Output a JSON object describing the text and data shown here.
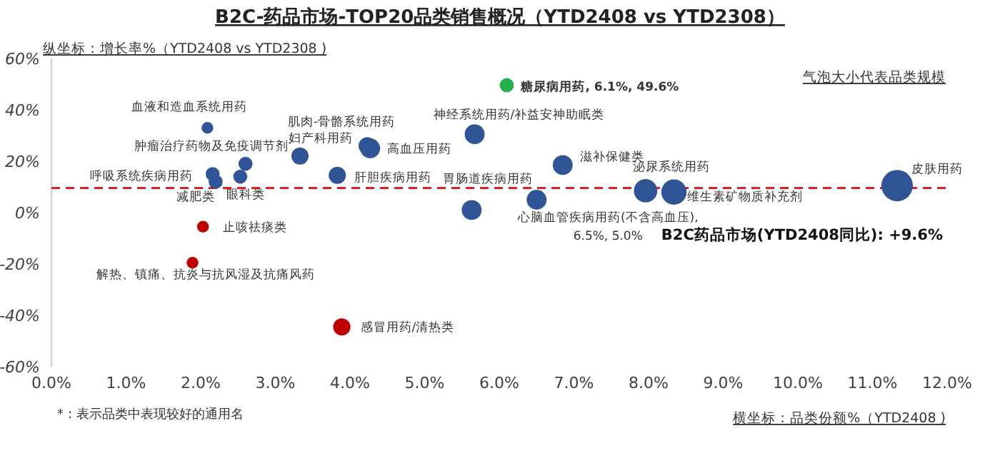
{
  "chart_data": {
    "type": "bubble",
    "title": "B2C-药品市场-TOP20品类销售概况（YTD2408 vs YTD2308）",
    "xlabel": "横坐标：品类份额%（YTD2408 )",
    "ylabel": "纵坐标：增长率%（YTD2408 vs YTD2308 )",
    "x": [
      6.1,
      2.09,
      2.6,
      2.16,
      2.2,
      2.53,
      3.33,
      4.23,
      4.27,
      3.83,
      5.67,
      5.63,
      6.5,
      6.85,
      7.96,
      8.34,
      11.33,
      2.03,
      1.89,
      3.89
    ],
    "values": [
      49.6,
      33,
      19,
      15,
      12,
      14,
      22,
      26,
      25,
      14.5,
      30.5,
      1,
      5,
      18.5,
      8.5,
      8,
      10.5,
      -5.5,
      -19.5,
      -44.5
    ],
    "sizes": [
      0.2,
      0.14,
      0.2,
      0.2,
      0.2,
      0.2,
      0.3,
      0.3,
      0.4,
      0.3,
      0.4,
      0.4,
      0.4,
      0.4,
      0.55,
      0.65,
      1,
      0.14,
      0.14,
      0.3
    ],
    "colors": [
      "#22b14c",
      "#2f5597",
      "#2f5597",
      "#2f5597",
      "#2f5597",
      "#2f5597",
      "#2f5597",
      "#2f5597",
      "#2f5597",
      "#2f5597",
      "#2f5597",
      "#2f5597",
      "#2f5597",
      "#2f5597",
      "#2f5597",
      "#2f5597",
      "#2f5597",
      "#c00000",
      "#c00000",
      "#c00000"
    ],
    "xlim": [
      0,
      12
    ],
    "ylim": [
      -60,
      60
    ],
    "xticks": [
      {
        "value": 0,
        "label": "0.0%"
      },
      {
        "value": 1,
        "label": "1.0%"
      },
      {
        "value": 2,
        "label": "2.0%"
      },
      {
        "value": 3,
        "label": "3.0%"
      },
      {
        "value": 4,
        "label": "4.0%"
      },
      {
        "value": 5,
        "label": "5.0%"
      },
      {
        "value": 6,
        "label": "6.0%"
      },
      {
        "value": 7,
        "label": "7.0%"
      },
      {
        "value": 8,
        "label": "8.0%"
      },
      {
        "value": 9,
        "label": "9.0%"
      },
      {
        "value": 10,
        "label": "10.0%"
      },
      {
        "value": 11,
        "label": "11.0%"
      },
      {
        "value": 12,
        "label": "12.0%"
      }
    ],
    "yticks": [
      {
        "value": 60,
        "label": "60%"
      },
      {
        "value": 40,
        "label": "40%"
      },
      {
        "value": 20,
        "label": "20%"
      },
      {
        "value": 0,
        "label": "0%"
      },
      {
        "value": -20,
        "label": "-20%"
      },
      {
        "value": -40,
        "label": "-40%"
      },
      {
        "value": -60,
        "label": "-60%"
      }
    ],
    "ref_lines": [
      {
        "axis": "y",
        "value": 9.6,
        "label": "B2C药品市场(YTD2408同比): +9.6%",
        "color": "#e02020",
        "line_style": "dashed"
      }
    ],
    "annotations": [
      {
        "text": "糖尿病用药, 6.1%, 49.6%",
        "x": 6.1,
        "y": 49.6
      },
      {
        "text": "血液和造血系统用药",
        "x": 2.09,
        "y": 33
      },
      {
        "text": "肿瘤治疗药物及免疫调节剂",
        "x": 2.6,
        "y": 19
      },
      {
        "text": "呼吸系统疾病用药",
        "x": 2.16,
        "y": 15
      },
      {
        "text": "减肥类",
        "x": 2.2,
        "y": 12
      },
      {
        "text": "眼科类",
        "x": 2.53,
        "y": 14
      },
      {
        "text": "妇产科用药",
        "x": 3.33,
        "y": 22
      },
      {
        "text": "肌肉-骨骼系统用药",
        "x": 4.23,
        "y": 26
      },
      {
        "text": "高血压用药",
        "x": 4.27,
        "y": 25
      },
      {
        "text": "肝胆疾病用药",
        "x": 3.83,
        "y": 14.5
      },
      {
        "text": "神经系统用药/补益安神助眠类",
        "x": 5.67,
        "y": 30.5
      },
      {
        "text": "胃肠道疾病用药",
        "x": 5.63,
        "y": 1
      },
      {
        "text": "心脑血管疾病用药(不含高血压),\n6.5%, 5.0%",
        "x": 6.5,
        "y": 5
      },
      {
        "text": "滋补保健类",
        "x": 6.85,
        "y": 18.5
      },
      {
        "text": "泌尿系统用药",
        "x": 7.96,
        "y": 8.5
      },
      {
        "text": "维生素矿物质补充剂",
        "x": 8.34,
        "y": 8
      },
      {
        "text": "皮肤用药",
        "x": 11.33,
        "y": 10.5
      },
      {
        "text": "止咳祛痰类",
        "x": 2.03,
        "y": -5.5
      },
      {
        "text": "解热、镇痛、抗炎与抗风湿及抗痛风药",
        "x": 1.89,
        "y": -19.5
      },
      {
        "text": "感冒用药/清热类",
        "x": 3.89,
        "y": -44.5
      },
      "气泡大小代表品类规模",
      "*：表示品类中表现较好的通用名"
    ]
  }
}
